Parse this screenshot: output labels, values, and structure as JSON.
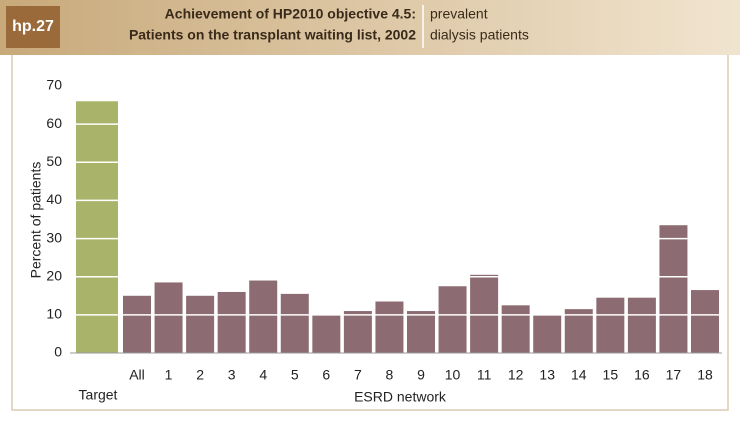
{
  "chart_data": {
    "type": "bar",
    "figure_label": "hp.27",
    "title": [
      "Achievement of HP2010 objective 4.5:",
      "Patients on the transplant waiting list, 2002"
    ],
    "subtitle": [
      "prevalent",
      "dialysis patients"
    ],
    "x_label": "ESRD network",
    "y_label": "Percent of patients",
    "categories": [
      "Target",
      "All",
      "1",
      "2",
      "3",
      "4",
      "5",
      "6",
      "7",
      "8",
      "9",
      "10",
      "11",
      "12",
      "13",
      "14",
      "15",
      "16",
      "17",
      "18"
    ],
    "values": [
      66,
      15,
      18.5,
      15,
      16,
      19,
      15.5,
      10,
      11,
      13.5,
      11,
      17.5,
      20.5,
      12.5,
      10,
      11.5,
      14.5,
      14.5,
      33.5,
      16.5
    ],
    "colors": [
      "#a9b46a",
      "#8c6c72",
      "#8c6c72",
      "#8c6c72",
      "#8c6c72",
      "#8c6c72",
      "#8c6c72",
      "#8c6c72",
      "#8c6c72",
      "#8c6c72",
      "#8c6c72",
      "#8c6c72",
      "#8c6c72",
      "#8c6c72",
      "#8c6c72",
      "#8c6c72",
      "#8c6c72",
      "#8c6c72",
      "#8c6c72",
      "#8c6c72"
    ],
    "ylim": [
      0,
      70
    ],
    "yticks": [
      0,
      10,
      20,
      30,
      40,
      50,
      60,
      70
    ],
    "grid": true
  }
}
